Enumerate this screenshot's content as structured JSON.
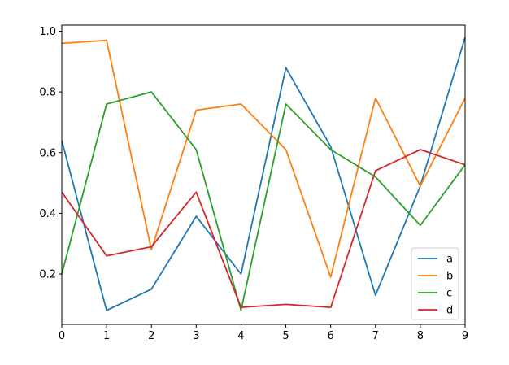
{
  "chart_data": {
    "type": "line",
    "title": "",
    "xlabel": "",
    "ylabel": "",
    "x": [
      0,
      1,
      2,
      3,
      4,
      5,
      6,
      7,
      8,
      9
    ],
    "xlim": [
      0,
      9
    ],
    "ylim": [
      0.034,
      1.02
    ],
    "xticks": [
      0,
      1,
      2,
      3,
      4,
      5,
      6,
      7,
      8,
      9
    ],
    "yticks": [
      0.2,
      0.4,
      0.6,
      0.8,
      1.0
    ],
    "ytick_labels": [
      "0.2",
      "0.4",
      "0.6",
      "0.8",
      "1.0"
    ],
    "grid": false,
    "legend_position": "lower-right",
    "series": [
      {
        "name": "a",
        "color": "#1f77b4",
        "values": [
          0.64,
          0.08,
          0.15,
          0.39,
          0.2,
          0.88,
          0.62,
          0.13,
          0.49,
          0.98
        ]
      },
      {
        "name": "b",
        "color": "#ff7f0e",
        "values": [
          0.96,
          0.97,
          0.28,
          0.74,
          0.76,
          0.61,
          0.19,
          0.78,
          0.49,
          0.78
        ]
      },
      {
        "name": "c",
        "color": "#2ca02c",
        "values": [
          0.2,
          0.76,
          0.8,
          0.61,
          0.08,
          0.76,
          0.61,
          0.52,
          0.36,
          0.56
        ]
      },
      {
        "name": "d",
        "color": "#d62728",
        "values": [
          0.47,
          0.26,
          0.29,
          0.47,
          0.09,
          0.1,
          0.09,
          0.54,
          0.61,
          0.56
        ]
      }
    ]
  }
}
